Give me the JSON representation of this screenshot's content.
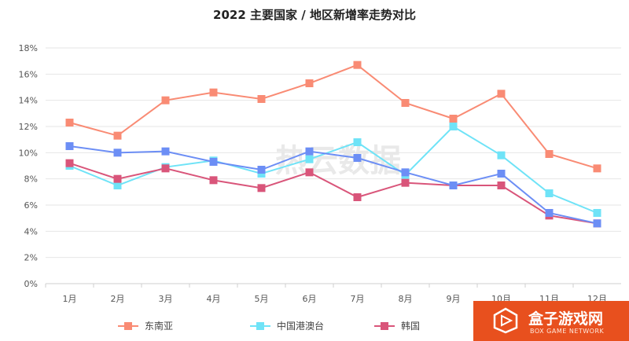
{
  "title": "2022 主要国家 / 地区新增率走势对比",
  "watermark": "热云数据",
  "brand": {
    "name": "盒子游戏网",
    "tagline": "BOX GAME NETWORK",
    "color": "#e8501e"
  },
  "chart_data": {
    "type": "line",
    "title": "2022 主要国家 / 地区新增率走势对比",
    "categories": [
      "1月",
      "2月",
      "3月",
      "4月",
      "5月",
      "6月",
      "7月",
      "8月",
      "9月",
      "10月",
      "11月",
      "12月"
    ],
    "y_ticks": [
      "0%",
      "2%",
      "4%",
      "6%",
      "8%",
      "10%",
      "12%",
      "14%",
      "16%",
      "18%"
    ],
    "ylim": [
      0,
      18
    ],
    "grid": true,
    "legend_position": "bottom",
    "series": [
      {
        "name": "东南亚",
        "color": "#f98b74",
        "values": [
          12.3,
          11.3,
          14.0,
          14.6,
          14.1,
          15.3,
          16.7,
          13.8,
          12.6,
          14.5,
          9.9,
          8.8
        ]
      },
      {
        "name": "中国港澳台",
        "color": "#6fe3f7",
        "values": [
          9.0,
          7.5,
          8.9,
          9.4,
          8.4,
          9.5,
          10.8,
          8.3,
          12.0,
          9.8,
          6.9,
          5.4
        ]
      },
      {
        "name": "韩国",
        "color": "#d9557a",
        "values": [
          9.2,
          8.0,
          8.8,
          7.9,
          7.3,
          8.5,
          6.6,
          7.7,
          7.5,
          7.5,
          5.2,
          4.6
        ]
      },
      {
        "name": "",
        "color": "#6c8ef5",
        "values": [
          10.5,
          10.0,
          10.1,
          9.3,
          8.7,
          10.1,
          9.6,
          8.5,
          7.5,
          8.4,
          5.4,
          4.6
        ]
      }
    ]
  }
}
